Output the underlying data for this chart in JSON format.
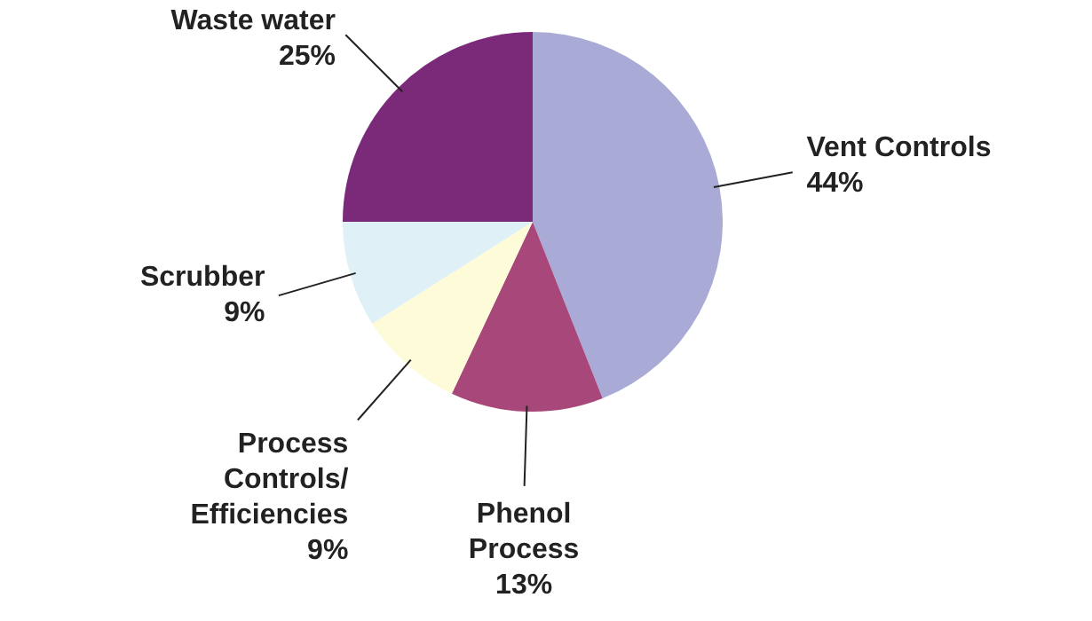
{
  "chart_data": {
    "type": "pie",
    "categories": [
      "Vent Controls",
      "Phenol Process",
      "Process Controls/ Efficiencies",
      "Scrubber",
      "Waste water"
    ],
    "values": [
      44,
      13,
      9,
      9,
      25
    ],
    "colors": [
      "#aaaad6",
      "#a8487a",
      "#fdfbd8",
      "#dff1f6",
      "#7a2a78"
    ],
    "value_labels": [
      "44%",
      "13%",
      "9%",
      "9%",
      "25%"
    ],
    "legend": false
  }
}
